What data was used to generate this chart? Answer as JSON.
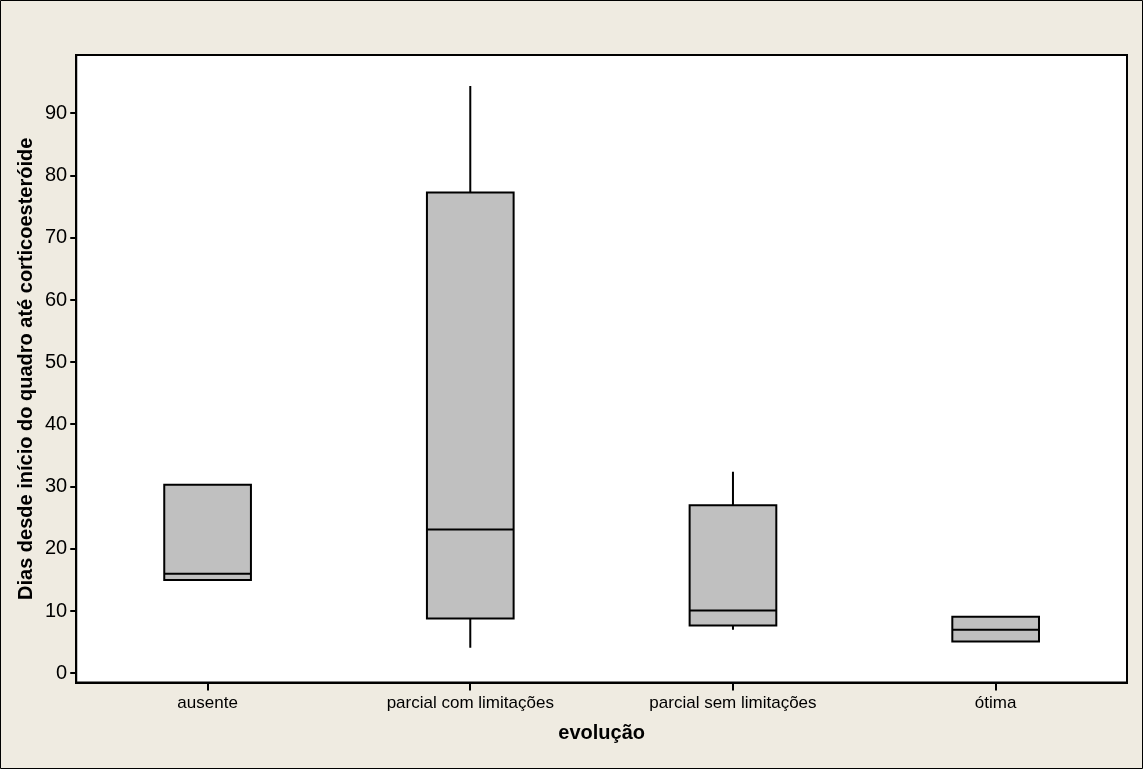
{
  "chart_data": {
    "type": "box",
    "xlabel": "evolução",
    "ylabel": "Dias desde início do quadro até corticoesteróide",
    "categories": [
      "ausente",
      "parcial com limitações",
      "parcial sem limitações",
      "ótima"
    ],
    "color": "#c0c0c0",
    "boxes": [
      {
        "low": 15,
        "q1": 15,
        "median": 16,
        "q3": 30.3,
        "high": 30.3
      },
      {
        "low": 4.1,
        "q1": 8.8,
        "median": 23.1,
        "q3": 77.3,
        "high": 94.4
      },
      {
        "low": 7,
        "q1": 7.7,
        "median": 10.1,
        "q3": 27,
        "high": 32.4
      },
      {
        "low": 5.1,
        "q1": 5.1,
        "median": 7,
        "q3": 9.1,
        "high": 9.1
      }
    ],
    "ylim": [
      -1.5,
      99.4
    ],
    "yticks": [
      0,
      10,
      20,
      30,
      40,
      50,
      60,
      70,
      80,
      90
    ]
  }
}
